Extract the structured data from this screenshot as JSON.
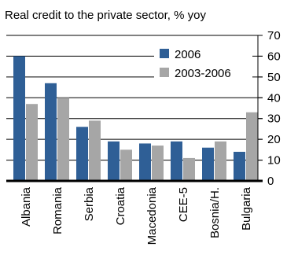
{
  "colors": {
    "series_2006": "#2f5f96",
    "series_2003_2006": "#a6a6a6",
    "gridline": "#000000",
    "axis": "#000000"
  },
  "chart_data": {
    "type": "bar",
    "title": "Real credit to the private sector, % yoy",
    "categories": [
      "Albania",
      "Romania",
      "Serbia",
      "Croatia",
      "Macedonia",
      "CEE-5",
      "Bosnia/H.",
      "Bulgaria"
    ],
    "series": [
      {
        "name": "2006",
        "values": [
          60,
          47,
          26,
          19,
          18,
          19,
          16,
          14
        ]
      },
      {
        "name": "2003-2006",
        "values": [
          37,
          40,
          29,
          15,
          17,
          11,
          19,
          33
        ]
      }
    ],
    "ylim": [
      0,
      70
    ],
    "yticks": [
      0,
      10,
      20,
      30,
      40,
      50,
      60,
      70
    ],
    "y_axis_side": "right",
    "grid": true,
    "legend_position": "top-right"
  }
}
